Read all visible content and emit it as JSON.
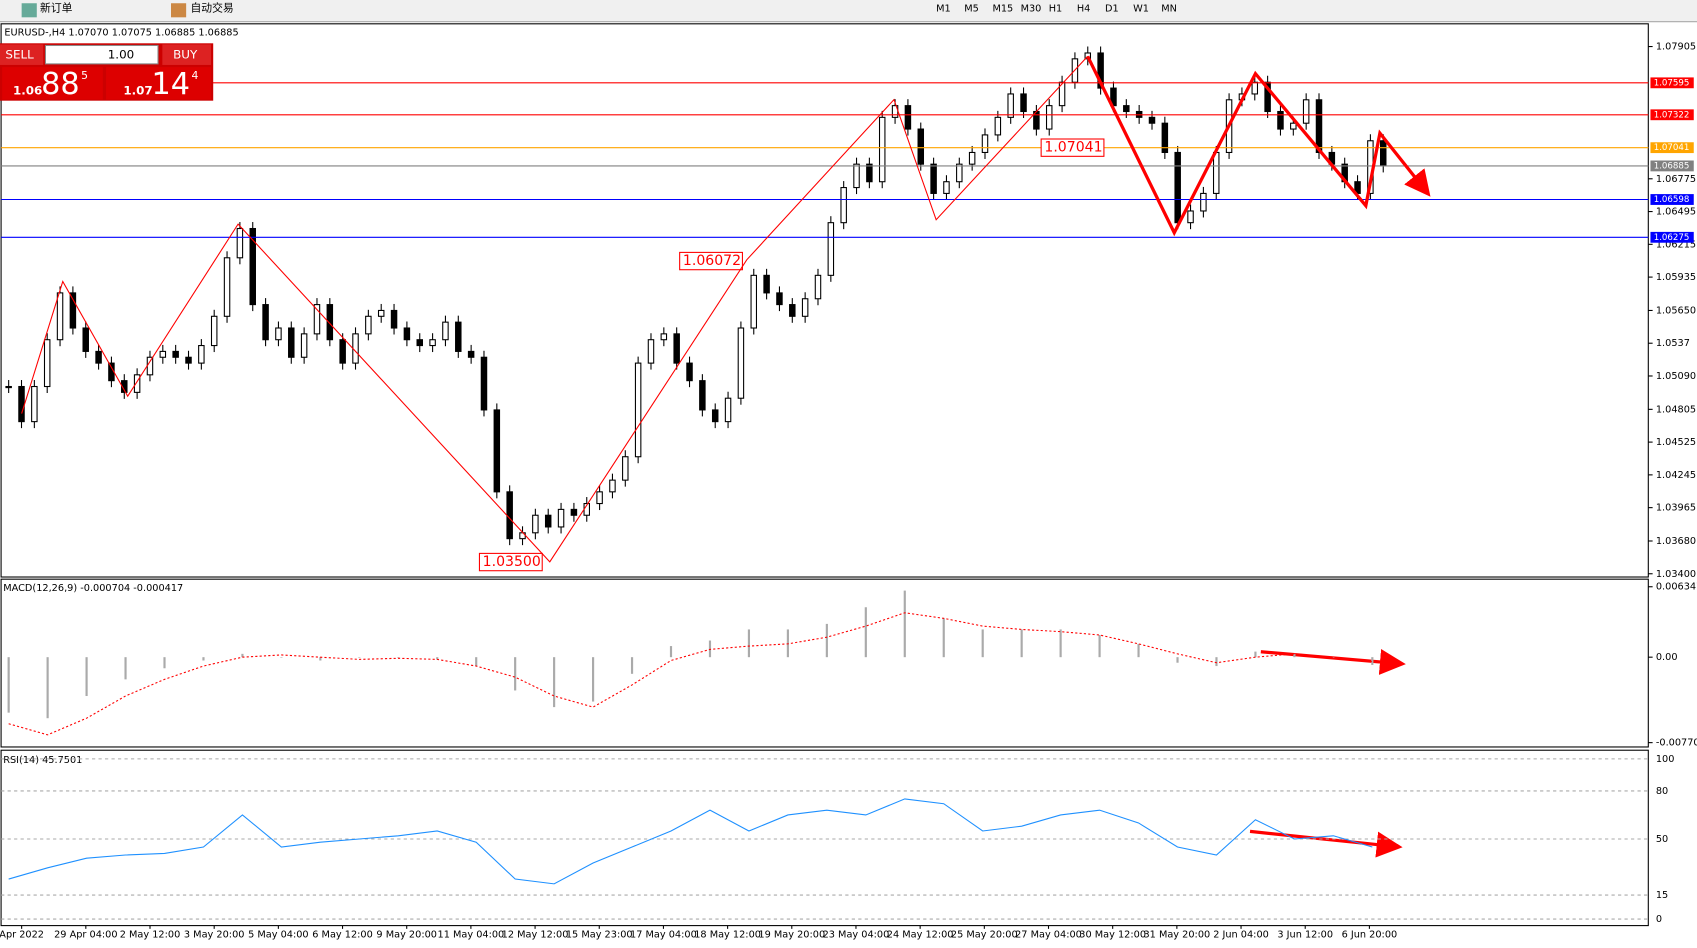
{
  "toolbar": {
    "new_order": "新订单",
    "auto_trading": "自动交易",
    "timeframes": [
      "M1",
      "M5",
      "M15",
      "M30",
      "H1",
      "H4",
      "D1",
      "W1",
      "MN"
    ]
  },
  "trade_panel": {
    "sell": "SELL",
    "lot": "1.00",
    "buy": "BUY",
    "sell_big": "1.06",
    "sell_pips": "88",
    "sell_frac": "5",
    "buy_big": "1.07",
    "buy_pips": "14",
    "buy_frac": "4"
  },
  "chart": {
    "symbol_info": "EURUSD-,H4  1.07070 1.07075 1.06885 1.06885",
    "ylim": [
      1.034,
      1.07905
    ],
    "yticks": [
      1.07905,
      1.06775,
      1.06495,
      1.06215,
      1.05935,
      {
        "value": 1.0565,
        "label": "1.05650"
      },
      1.0537,
      {
        "value": 1.0509,
        "label": "1.05090"
      },
      1.04805,
      1.04525,
      1.04245,
      1.03965,
      {
        "value": 1.0368,
        "label": "1.03680"
      },
      {
        "value": 1.034,
        "label": "1.03400"
      }
    ],
    "levels": [
      {
        "value": 1.07595,
        "color": "#ff0000"
      },
      {
        "value": 1.07322,
        "color": "#ff0000"
      },
      {
        "value": 1.07041,
        "color": "#ffa500"
      },
      {
        "value": 1.06885,
        "color": "#808080"
      },
      {
        "value": 1.06598,
        "color": "#0000ff"
      },
      {
        "value": 1.06275,
        "color": "#0000ff"
      }
    ],
    "annotations": [
      {
        "label": "1.07041",
        "value": 1.07041
      },
      {
        "label": "1.06072",
        "value": 1.06072
      },
      {
        "label": "1.03500",
        "value": 1.035
      }
    ],
    "closes": [
      1.05,
      1.047,
      1.05,
      1.054,
      1.058,
      1.055,
      1.053,
      1.052,
      1.0505,
      1.0495,
      1.051,
      1.0525,
      1.053,
      1.0525,
      1.052,
      1.0535,
      1.056,
      1.061,
      1.0635,
      1.057,
      1.054,
      1.055,
      1.0525,
      1.0545,
      1.057,
      1.054,
      1.052,
      1.0545,
      1.056,
      1.0565,
      1.055,
      1.054,
      1.0535,
      1.054,
      1.0555,
      1.053,
      1.0525,
      1.048,
      1.041,
      1.037,
      1.0375,
      1.039,
      1.038,
      1.0395,
      1.039,
      1.04,
      1.041,
      1.042,
      1.044,
      1.052,
      1.054,
      1.0545,
      1.052,
      1.0505,
      1.048,
      1.047,
      1.049,
      1.055,
      1.0595,
      1.058,
      1.057,
      1.056,
      1.0575,
      1.0595,
      1.064,
      1.067,
      1.069,
      1.0675,
      1.073,
      1.074,
      1.072,
      1.069,
      1.0665,
      1.0675,
      1.069,
      1.07,
      1.0715,
      1.073,
      1.075,
      1.0735,
      1.072,
      1.074,
      1.076,
      1.078,
      1.0785,
      1.0755,
      1.074,
      1.0735,
      1.073,
      1.0725,
      1.07,
      1.064,
      1.065,
      1.0665,
      1.07,
      1.0745,
      1.075,
      1.076,
      1.0735,
      1.072,
      1.0725,
      1.0745,
      1.07,
      1.069,
      1.0675,
      1.0665,
      1.071,
      1.06885
    ],
    "time_labels": [
      "Apr 2022",
      "29 Apr 04:00",
      "2 May 12:00",
      "3 May 20:00",
      "5 May 04:00",
      "6 May 12:00",
      "9 May 20:00",
      "11 May 04:00",
      "12 May 12:00",
      "15 May 23:00",
      "17 May 04:00",
      "18 May 12:00",
      "19 May 20:00",
      "23 May 04:00",
      "24 May 12:00",
      "25 May 20:00",
      "27 May 04:00",
      "30 May 12:00",
      "31 May 20:00",
      "2 Jun 04:00",
      "3 Jun 12:00",
      "6 Jun 20:00"
    ]
  },
  "macd": {
    "label": "MACD(12,26,9) -0.000704 -0.000417",
    "ylim": [
      -0.007703,
      0.006347
    ],
    "yticks": [
      0.006347,
      {
        "value": 0,
        "label": "0.00"
      },
      -0.007703
    ],
    "histogram": [
      -0.005,
      -0.0055,
      -0.0035,
      -0.002,
      -0.001,
      -0.0003,
      0.0003,
      0,
      -0.0003,
      0,
      0,
      -0.0002,
      -0.0008,
      -0.003,
      -0.0045,
      -0.004,
      -0.0015,
      0.001,
      0.0015,
      0.0025,
      0.0025,
      0.003,
      0.0045,
      0.006,
      0.0035,
      0.0025,
      0.0025,
      0.0025,
      0.002,
      0.0012,
      -0.0005,
      -0.0008,
      0.0005,
      0.0003,
      0,
      -0.0007
    ],
    "signal": [
      -0.006,
      -0.007,
      -0.0055,
      -0.0035,
      -0.002,
      -0.0008,
      0,
      0.0002,
      0,
      -0.0002,
      -0.0001,
      -0.0002,
      -0.0008,
      -0.0018,
      -0.0035,
      -0.0045,
      -0.0025,
      -0.0003,
      0.0007,
      0.001,
      0.0012,
      0.0018,
      0.0028,
      0.004,
      0.0035,
      0.0028,
      0.0025,
      0.0023,
      0.002,
      0.0012,
      0.0003,
      -0.0005,
      0,
      0.0003,
      0,
      -0.0004
    ]
  },
  "rsi": {
    "label": "RSI(14) 45.7501",
    "ylim": [
      0,
      100
    ],
    "yticks": [
      100,
      80,
      50,
      15,
      0
    ],
    "values": [
      25,
      32,
      38,
      40,
      41,
      45,
      65,
      45,
      48,
      50,
      52,
      55,
      48,
      25,
      22,
      35,
      45,
      55,
      68,
      55,
      65,
      68,
      65,
      75,
      72,
      55,
      58,
      65,
      68,
      60,
      45,
      40,
      62,
      50,
      52,
      45
    ]
  }
}
